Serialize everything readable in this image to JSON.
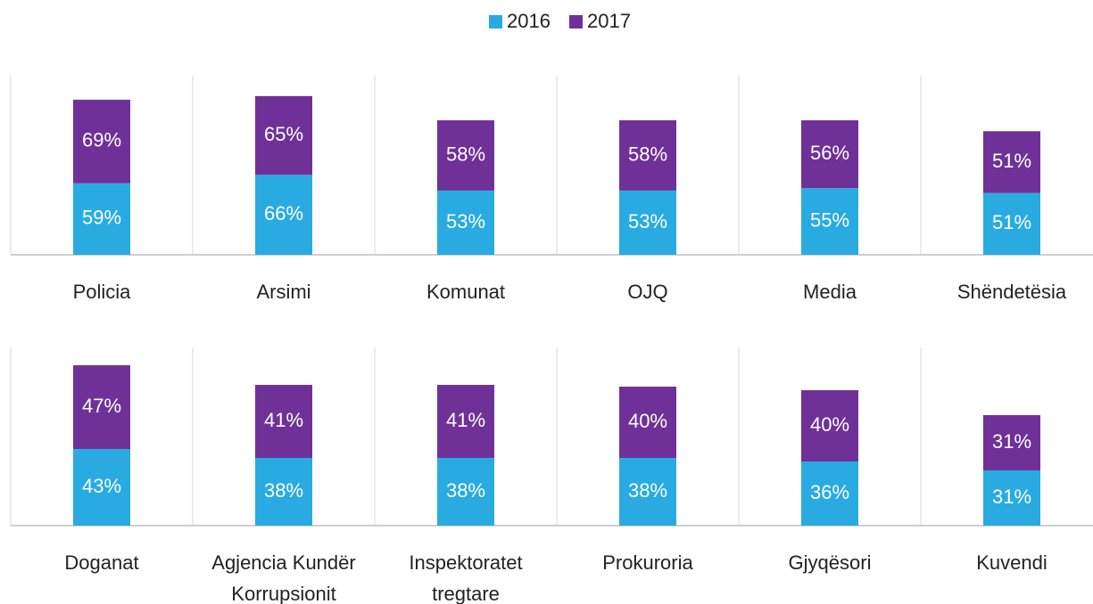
{
  "chart_data": {
    "type": "stacked_bar",
    "legend": "top",
    "categories": [
      "Policia",
      "Arsimi",
      "Komunat",
      "OJQ",
      "Media",
      "Shëndetësia",
      "Doganat",
      "Agjencia Kundër Korrupsionit",
      "Inspektoratet tregtare",
      "Prokuroria",
      "Gjyqësori",
      "Kuvendi"
    ],
    "series": [
      {
        "name": "2016",
        "color": "#29abe2",
        "values": [
          59,
          66,
          53,
          53,
          55,
          51,
          43,
          38,
          38,
          38,
          36,
          31
        ],
        "value_labels": [
          "59%",
          "66%",
          "53%",
          "53%",
          "55%",
          "51%",
          "43%",
          "38%",
          "38%",
          "38%",
          "36%",
          "31%"
        ]
      },
      {
        "name": "2017",
        "color": "#6f3198",
        "values": [
          69,
          65,
          58,
          58,
          56,
          51,
          47,
          41,
          41,
          40,
          40,
          31
        ],
        "value_labels": [
          "69%",
          "65%",
          "58%",
          "58%",
          "56%",
          "51%",
          "47%",
          "41%",
          "41%",
          "40%",
          "40%",
          "31%"
        ]
      }
    ]
  }
}
